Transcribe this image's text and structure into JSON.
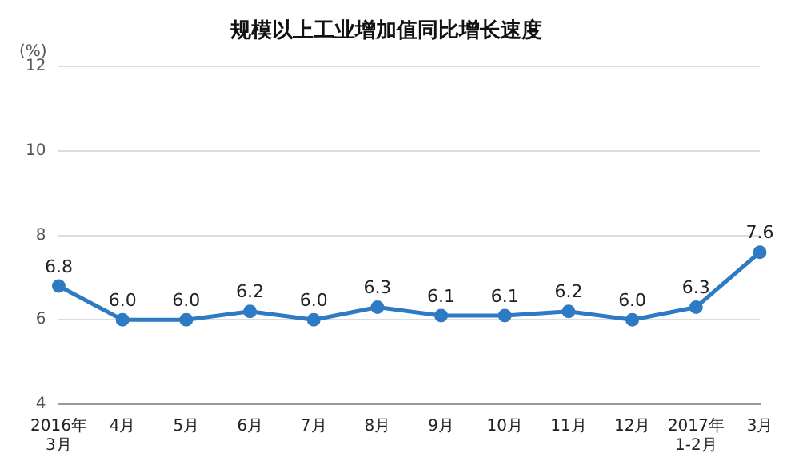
{
  "chart_data": {
    "type": "line",
    "title": "规模以上工业增加值同比增长速度",
    "ylabel": "(%)",
    "categories": [
      "2016年\n3月",
      "4月",
      "5月",
      "6月",
      "7月",
      "8月",
      "9月",
      "10月",
      "11月",
      "12月",
      "2017年\n1-2月",
      "3月"
    ],
    "series": [
      {
        "color": "#2e7bc4",
        "values": [
          6.8,
          6.0,
          6.0,
          6.2,
          6.0,
          6.3,
          6.1,
          6.1,
          6.2,
          6.0,
          6.3,
          7.6
        ],
        "value_labels": [
          "6.8",
          "6.0",
          "6.0",
          "6.2",
          "6.0",
          "6.3",
          "6.1",
          "6.1",
          "6.2",
          "6.0",
          "6.3",
          "7.6"
        ]
      }
    ],
    "ylim": [
      4,
      12
    ],
    "yticks": [
      4,
      6,
      8,
      10,
      12
    ],
    "grid": "y",
    "marker": "circle",
    "line_style": "solid",
    "legend": false
  }
}
